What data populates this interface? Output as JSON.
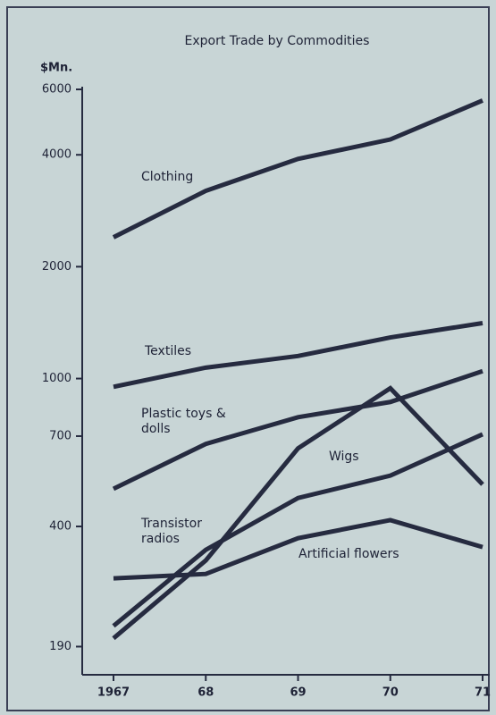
{
  "chart_data": {
    "type": "line",
    "title": "Export Trade by Commodities",
    "y_label": "$Mn.",
    "log_scale": true,
    "color": "#262b40",
    "categories": [
      "1967",
      "68",
      "69",
      "70",
      "71"
    ],
    "ylim": [
      160,
      6000
    ],
    "yticks": [
      190,
      400,
      700,
      1000,
      2000,
      4000,
      6000
    ],
    "series": [
      {
        "name": "Clothing",
        "color": "#262b40",
        "values": [
          2400,
          3200,
          3900,
          4400,
          5600
        ]
      },
      {
        "name": "Textiles",
        "color": "#262b40",
        "values": [
          950,
          1070,
          1150,
          1290,
          1410
        ]
      },
      {
        "name": "Plastic toys & dolls",
        "color": "#262b40",
        "values": [
          505,
          667,
          787,
          865,
          1047
        ]
      },
      {
        "name": "Wigs",
        "color": "#262b40",
        "values": [
          200,
          324,
          649,
          942,
          519
        ]
      },
      {
        "name": "Transistor radios",
        "color": "#262b40",
        "values": [
          216,
          346,
          477,
          548,
          708
        ]
      },
      {
        "name": "Artificial flowers",
        "color": "#262b40",
        "values": [
          290,
          298,
          372,
          416,
          352
        ]
      }
    ]
  }
}
